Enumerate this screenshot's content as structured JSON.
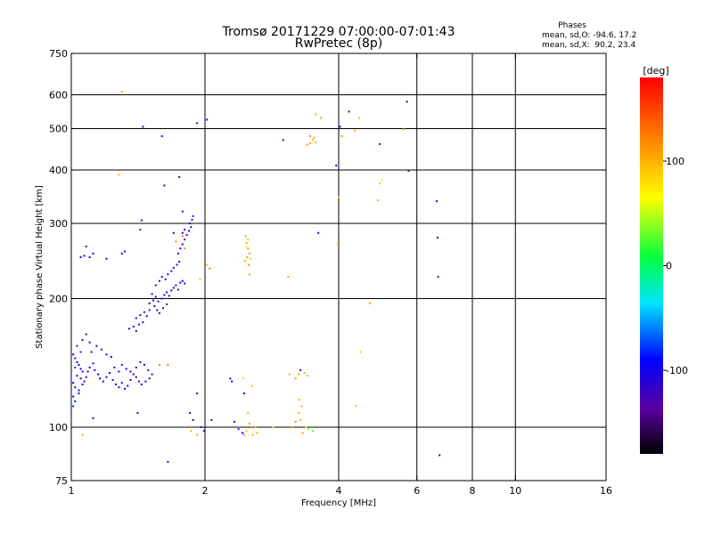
{
  "header": {
    "title": "Tromsø 20171229 07:00:00-07:01:43",
    "subtitle": "RwPretec (8p)"
  },
  "legend_stats": {
    "heading": "Phases",
    "line_o": "mean, sd,O: -94.6, 17.2",
    "line_x": "mean, sd,X:  90.2, 23.4"
  },
  "colorbar": {
    "label": "[deg]",
    "ticks": [
      {
        "value": 100,
        "label": "100"
      },
      {
        "value": 0,
        "label": "0"
      },
      {
        "value": -100,
        "label": "-100"
      }
    ],
    "range": [
      -180,
      180
    ]
  },
  "chart_data": {
    "type": "scatter",
    "title": "Tromsø 20171229 07:00:00-07:01:43",
    "subtitle": "RwPretec (8p)",
    "xlabel": "Frequency [MHz]",
    "ylabel": "Stationary phase Virtual Height [km]",
    "xscale": "log",
    "yscale": "log",
    "xlim": [
      1,
      16
    ],
    "ylim": [
      75,
      750
    ],
    "xticks": [
      {
        "value": 1,
        "label": "1"
      },
      {
        "value": 2,
        "label": "2"
      },
      {
        "value": 4,
        "label": "4"
      },
      {
        "value": 6,
        "label": "6"
      },
      {
        "value": 8,
        "label": "8"
      },
      {
        "value": 10,
        "label": "10"
      },
      {
        "value": 16,
        "label": "16"
      }
    ],
    "yticks": [
      {
        "value": 75,
        "label": "75"
      },
      {
        "value": 100,
        "label": "100"
      },
      {
        "value": 200,
        "label": "200"
      },
      {
        "value": 300,
        "label": "300"
      },
      {
        "value": 400,
        "label": "400"
      },
      {
        "value": 500,
        "label": "500"
      },
      {
        "value": 600,
        "label": "600"
      },
      {
        "value": 750,
        "label": "750"
      }
    ],
    "grid_x": [
      2,
      4,
      6,
      8,
      10
    ],
    "grid_y": [
      100,
      200,
      300,
      400,
      500,
      600
    ],
    "grid": true,
    "color_variable": "phase [deg]",
    "points": [
      [
        1.01,
        148,
        -90
      ],
      [
        1.02,
        145,
        -85
      ],
      [
        1.03,
        142,
        -92
      ],
      [
        1.04,
        140,
        -88
      ],
      [
        1.05,
        137,
        -95
      ],
      [
        1.06,
        135,
        -100
      ],
      [
        1.02,
        138,
        -80
      ],
      [
        1.03,
        132,
        -90
      ],
      [
        1.05,
        130,
        -95
      ],
      [
        1.07,
        128,
        -105
      ],
      [
        1.01,
        127,
        -90
      ],
      [
        1.02,
        124,
        -85
      ],
      [
        1.04,
        122,
        -88
      ],
      [
        1.06,
        126,
        -95
      ],
      [
        1.08,
        131,
        -100
      ],
      [
        1.09,
        135,
        -92
      ],
      [
        1.1,
        138,
        -98
      ],
      [
        1.12,
        141,
        -104
      ],
      [
        1.13,
        136,
        -110
      ],
      [
        1.15,
        133,
        -95
      ],
      [
        1.16,
        130,
        -90
      ],
      [
        1.18,
        128,
        -100
      ],
      [
        1.2,
        131,
        -108
      ],
      [
        1.22,
        134,
        -96
      ],
      [
        1.24,
        129,
        -112
      ],
      [
        1.26,
        126,
        -100
      ],
      [
        1.28,
        124,
        -105
      ],
      [
        1.3,
        127,
        -110
      ],
      [
        1.32,
        123,
        -95
      ],
      [
        1.34,
        125,
        -100
      ],
      [
        1.36,
        129,
        -108
      ],
      [
        1.38,
        133,
        -100
      ],
      [
        1.4,
        131,
        -112
      ],
      [
        1.42,
        128,
        -106
      ],
      [
        1.44,
        126,
        -98
      ],
      [
        1.11,
        150,
        -90
      ],
      [
        1.14,
        155,
        -95
      ],
      [
        1.17,
        152,
        -100
      ],
      [
        1.2,
        148,
        -92
      ],
      [
        1.23,
        146,
        -98
      ],
      [
        1.06,
        160,
        -88
      ],
      [
        1.08,
        165,
        -92
      ],
      [
        1.1,
        158,
        -96
      ],
      [
        1.03,
        155,
        -85
      ],
      [
        1.05,
        150,
        -80
      ],
      [
        1.01,
        118,
        -85
      ],
      [
        1.02,
        115,
        -88
      ],
      [
        1.04,
        120,
        -92
      ],
      [
        1.25,
        138,
        -100
      ],
      [
        1.28,
        135,
        -104
      ],
      [
        1.3,
        140,
        -110
      ],
      [
        1.33,
        137,
        -95
      ],
      [
        1.36,
        135,
        -100
      ],
      [
        1.4,
        138,
        -108
      ],
      [
        1.43,
        142,
        -102
      ],
      [
        1.46,
        140,
        -110
      ],
      [
        1.49,
        136,
        -112
      ],
      [
        1.52,
        133,
        -120
      ],
      [
        1.5,
        130,
        -118
      ],
      [
        1.47,
        128,
        -110
      ],
      [
        1.35,
        170,
        -110
      ],
      [
        1.38,
        172,
        -112
      ],
      [
        1.4,
        168,
        -108
      ],
      [
        1.42,
        174,
        -115
      ],
      [
        1.45,
        176,
        -110
      ],
      [
        1.4,
        180,
        -105
      ],
      [
        1.43,
        183,
        -112
      ],
      [
        1.46,
        186,
        -118
      ],
      [
        1.48,
        182,
        -108
      ],
      [
        1.5,
        188,
        -115
      ],
      [
        1.5,
        195,
        -110
      ],
      [
        1.53,
        198,
        -115
      ],
      [
        1.55,
        202,
        -120
      ],
      [
        1.57,
        197,
        -112
      ],
      [
        1.6,
        200,
        -118
      ],
      [
        1.62,
        204,
        -110
      ],
      [
        1.64,
        207,
        -115
      ],
      [
        1.66,
        203,
        -120
      ],
      [
        1.68,
        209,
        -116
      ],
      [
        1.7,
        212,
        -110
      ],
      [
        1.72,
        215,
        -118
      ],
      [
        1.74,
        210,
        -122
      ],
      [
        1.76,
        218,
        -114
      ],
      [
        1.78,
        220,
        -110
      ],
      [
        1.8,
        217,
        -118
      ],
      [
        1.55,
        215,
        -110
      ],
      [
        1.58,
        220,
        -112
      ],
      [
        1.6,
        225,
        -115
      ],
      [
        1.63,
        222,
        -118
      ],
      [
        1.65,
        228,
        -112
      ],
      [
        1.68,
        232,
        -115
      ],
      [
        1.7,
        236,
        -120
      ],
      [
        1.73,
        240,
        -112
      ],
      [
        1.75,
        244,
        -118
      ],
      [
        1.52,
        205,
        -115
      ],
      [
        1.54,
        192,
        -110
      ],
      [
        1.56,
        188,
        -112
      ],
      [
        1.58,
        185,
        -118
      ],
      [
        1.61,
        190,
        -120
      ],
      [
        1.64,
        194,
        -115
      ],
      [
        1.74,
        255,
        -120
      ],
      [
        1.76,
        262,
        -115
      ],
      [
        1.78,
        268,
        -118
      ],
      [
        1.8,
        275,
        -122
      ],
      [
        1.82,
        282,
        -115
      ],
      [
        1.84,
        288,
        -120
      ],
      [
        1.86,
        294,
        -118
      ],
      [
        1.85,
        300,
        -112
      ],
      [
        1.87,
        306,
        -120
      ],
      [
        1.88,
        312,
        -116
      ],
      [
        1.78,
        285,
        -110
      ],
      [
        1.8,
        290,
        -112
      ],
      [
        1.05,
        250,
        -95
      ],
      [
        1.07,
        252,
        -92
      ],
      [
        1.1,
        250,
        -98
      ],
      [
        1.12,
        255,
        -100
      ],
      [
        1.08,
        265,
        -110
      ],
      [
        1.3,
        255,
        -90
      ],
      [
        1.32,
        258,
        -95
      ],
      [
        1.2,
        248,
        -100
      ],
      [
        1.44,
        305,
        -85
      ],
      [
        1.43,
        290,
        -80
      ],
      [
        1.75,
        385,
        -120
      ],
      [
        1.62,
        368,
        -110
      ],
      [
        1.45,
        505,
        -90
      ],
      [
        1.6,
        480,
        -110
      ],
      [
        2.02,
        525,
        -120
      ],
      [
        1.92,
        515,
        -115
      ],
      [
        1.7,
        285,
        -90
      ],
      [
        1.78,
        320,
        -120
      ],
      [
        1.01,
        112,
        -80
      ],
      [
        1.12,
        105,
        -95
      ],
      [
        1.41,
        108,
        -85
      ],
      [
        1.65,
        83,
        -90
      ],
      [
        1.88,
        104,
        -95
      ],
      [
        1.96,
        100,
        -120
      ],
      [
        1.99,
        98,
        -110
      ],
      [
        2.07,
        104,
        -120
      ],
      [
        1.92,
        120,
        -80
      ],
      [
        1.85,
        108,
        -85
      ],
      [
        1.3,
        610,
        110
      ],
      [
        1.28,
        390,
        100
      ],
      [
        1.72,
        272,
        120
      ],
      [
        1.8,
        262,
        115
      ],
      [
        1.78,
        280,
        125
      ],
      [
        1.65,
        140,
        130
      ],
      [
        1.58,
        140,
        120
      ],
      [
        1.06,
        96,
        100
      ],
      [
        1.92,
        96,
        110
      ],
      [
        1.86,
        98,
        105
      ],
      [
        2.47,
        280,
        110
      ],
      [
        2.48,
        270,
        105
      ],
      [
        2.5,
        262,
        115
      ],
      [
        2.52,
        255,
        108
      ],
      [
        2.49,
        250,
        112
      ],
      [
        2.46,
        245,
        100
      ],
      [
        2.51,
        240,
        118
      ],
      [
        2.5,
        275,
        30
      ],
      [
        2.48,
        265,
        60
      ],
      [
        2.53,
        248,
        40
      ],
      [
        2.45,
        120,
        -90
      ],
      [
        2.5,
        108,
        100
      ],
      [
        2.52,
        102,
        110
      ],
      [
        2.48,
        98,
        105
      ],
      [
        2.55,
        100,
        120
      ],
      [
        2.45,
        96,
        115
      ],
      [
        2.6,
        100,
        95
      ],
      [
        2.55,
        125,
        100
      ],
      [
        2.44,
        130,
        80
      ],
      [
        2.56,
        96,
        110
      ],
      [
        2.62,
        97,
        100
      ],
      [
        2.52,
        228,
        110
      ],
      [
        2.05,
        235,
        130
      ],
      [
        2.02,
        240,
        100
      ],
      [
        1.95,
        222,
        90
      ],
      [
        2.28,
        130,
        -100
      ],
      [
        2.3,
        128,
        -95
      ],
      [
        2.33,
        103,
        -90
      ],
      [
        2.38,
        99,
        -80
      ],
      [
        2.43,
        97,
        -90
      ],
      [
        3.15,
        100,
        105
      ],
      [
        3.2,
        103,
        110
      ],
      [
        3.25,
        108,
        95
      ],
      [
        3.28,
        104,
        100
      ],
      [
        3.32,
        97,
        110
      ],
      [
        3.38,
        100,
        70
      ],
      [
        3.42,
        99,
        40
      ],
      [
        3.5,
        98,
        20
      ],
      [
        3.3,
        112,
        105
      ],
      [
        3.26,
        116,
        100
      ],
      [
        3.2,
        130,
        110
      ],
      [
        3.25,
        133,
        105
      ],
      [
        3.35,
        134,
        100
      ],
      [
        3.4,
        132,
        95
      ],
      [
        3.28,
        136,
        -120
      ],
      [
        3.1,
        133,
        100
      ],
      [
        3.08,
        225,
        110
      ],
      [
        3.4,
        458,
        110
      ],
      [
        3.45,
        462,
        105
      ],
      [
        3.5,
        470,
        100
      ],
      [
        3.52,
        476,
        108
      ],
      [
        3.45,
        480,
        115
      ],
      [
        3.55,
        465,
        100
      ],
      [
        3.0,
        470,
        -90
      ],
      [
        2.85,
        100,
        60
      ],
      [
        3.6,
        285,
        -90
      ],
      [
        3.98,
        268,
        100
      ],
      [
        3.95,
        410,
        -90
      ],
      [
        4.0,
        345,
        90
      ],
      [
        4.03,
        505,
        -110
      ],
      [
        4.07,
        480,
        110
      ],
      [
        4.22,
        548,
        -110
      ],
      [
        4.35,
        495,
        100
      ],
      [
        4.45,
        530,
        100
      ],
      [
        4.48,
        150,
        100
      ],
      [
        4.38,
        112,
        100
      ],
      [
        4.7,
        195,
        110
      ],
      [
        4.9,
        340,
        100
      ],
      [
        4.95,
        372,
        40
      ],
      [
        5.0,
        378,
        70
      ],
      [
        4.95,
        460,
        -120
      ],
      [
        5.6,
        498,
        100
      ],
      [
        5.7,
        578,
        -110
      ],
      [
        5.75,
        398,
        -120
      ],
      [
        6.65,
        338,
        -110
      ],
      [
        6.68,
        278,
        -90
      ],
      [
        6.7,
        225,
        -80
      ],
      [
        6.75,
        86,
        -150
      ],
      [
        3.55,
        540,
        100
      ],
      [
        3.65,
        530,
        110
      ]
    ]
  }
}
